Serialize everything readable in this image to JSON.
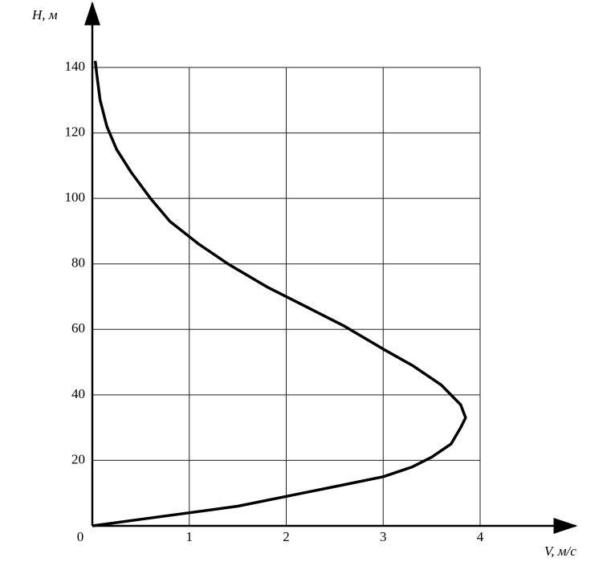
{
  "chart_data": {
    "type": "line",
    "x_label": "V, м/с",
    "y_label": "H, м",
    "xlim": [
      0,
      4
    ],
    "ylim": [
      0,
      140
    ],
    "xticks": [
      0,
      1,
      2,
      3,
      4
    ],
    "yticks": [
      20,
      40,
      60,
      80,
      100,
      120,
      140
    ],
    "grid": true,
    "color": "#000000",
    "series": [
      {
        "x": [
          0,
          0.5,
          1,
          1.5,
          2,
          2.5,
          3,
          3.3,
          3.5,
          3.7,
          3.8,
          3.85,
          3.8,
          3.6,
          3.3,
          3,
          2.6,
          2.2,
          1.8,
          1.4,
          1.1,
          0.8,
          0.6,
          0.4,
          0.25,
          0.15,
          0.08,
          0.05,
          0.03
        ],
        "values": [
          0,
          2,
          4,
          6,
          9,
          12,
          15,
          18,
          21,
          25,
          30,
          33,
          37,
          43,
          49,
          54,
          61,
          67,
          73,
          80,
          86,
          93,
          100,
          108,
          115,
          122,
          130,
          137,
          142
        ]
      }
    ]
  }
}
